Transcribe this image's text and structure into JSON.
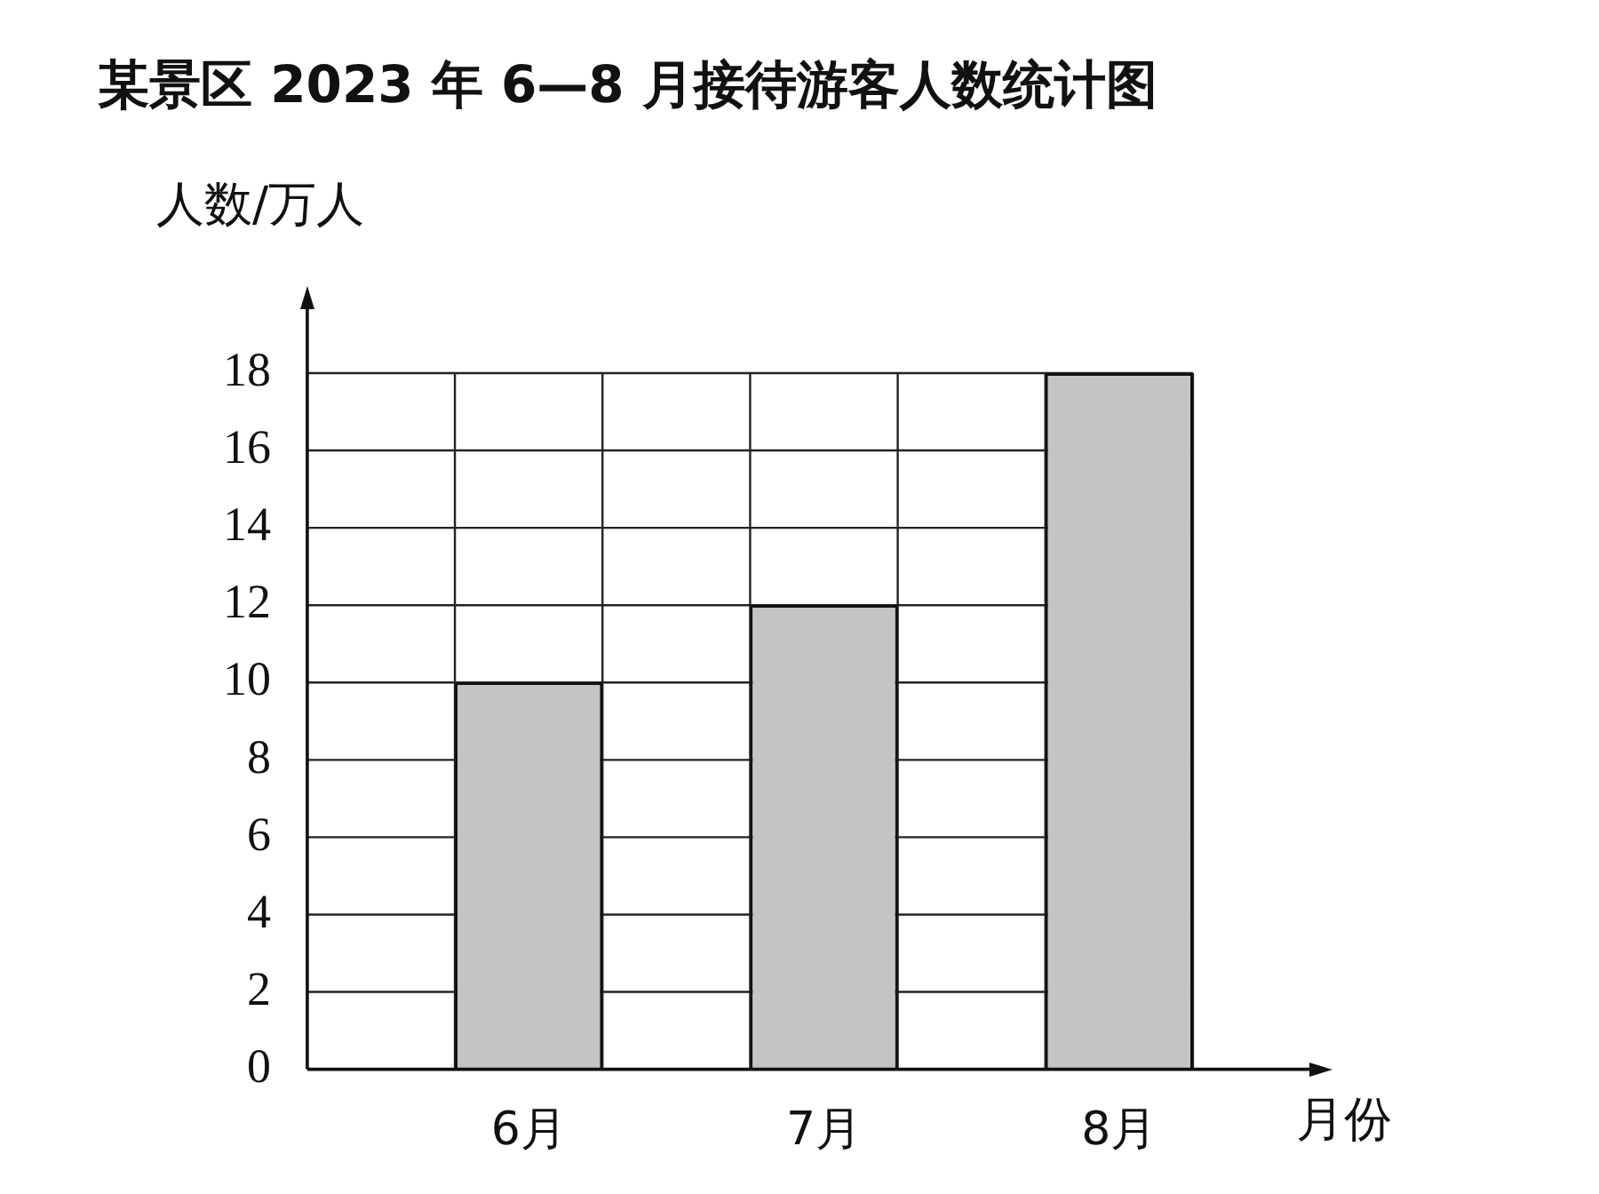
{
  "chart_data": {
    "type": "bar",
    "title": "某景区 2023 年 6—8 月接待游客人数统计图",
    "ylabel": "人数/万人",
    "xlabel": "月份",
    "categories": [
      "6月",
      "7月",
      "8月"
    ],
    "values": [
      10,
      12,
      18
    ],
    "color": "#c4c4c4",
    "ylim": [
      0,
      18
    ],
    "yticks": [
      0,
      2,
      4,
      6,
      8,
      10,
      12,
      14,
      16,
      18
    ],
    "grid": true
  }
}
